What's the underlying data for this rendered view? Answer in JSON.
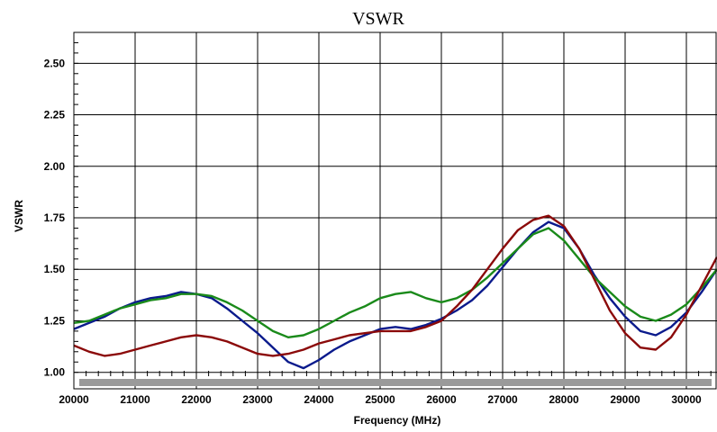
{
  "chart_data": {
    "type": "line",
    "title": "VSWR",
    "xlabel": "Frequency (MHz)",
    "ylabel": "VSWR",
    "xlim": [
      20000,
      30500
    ],
    "ylim": [
      0.92,
      2.65
    ],
    "x_ticks": [
      20000,
      21000,
      22000,
      23000,
      24000,
      25000,
      26000,
      27000,
      28000,
      29000,
      30000
    ],
    "y_ticks": [
      1.0,
      1.25,
      1.5,
      1.75,
      2.0,
      2.25,
      2.5
    ],
    "y_tick_labels": [
      "1.00",
      "1.25",
      "1.50",
      "1.75",
      "2.00",
      "2.25",
      "2.50"
    ],
    "grid": true,
    "legend": "none",
    "series": [
      {
        "color": "#0a1a8c",
        "points": [
          [
            20000,
            1.21
          ],
          [
            20250,
            1.24
          ],
          [
            20500,
            1.27
          ],
          [
            20750,
            1.31
          ],
          [
            21000,
            1.34
          ],
          [
            21250,
            1.36
          ],
          [
            21500,
            1.37
          ],
          [
            21750,
            1.39
          ],
          [
            22000,
            1.38
          ],
          [
            22250,
            1.36
          ],
          [
            22500,
            1.31
          ],
          [
            22750,
            1.25
          ],
          [
            23000,
            1.19
          ],
          [
            23250,
            1.12
          ],
          [
            23500,
            1.05
          ],
          [
            23750,
            1.02
          ],
          [
            24000,
            1.06
          ],
          [
            24250,
            1.11
          ],
          [
            24500,
            1.15
          ],
          [
            24750,
            1.18
          ],
          [
            25000,
            1.21
          ],
          [
            25250,
            1.22
          ],
          [
            25500,
            1.21
          ],
          [
            25750,
            1.23
          ],
          [
            26000,
            1.26
          ],
          [
            26250,
            1.3
          ],
          [
            26500,
            1.35
          ],
          [
            26750,
            1.42
          ],
          [
            27000,
            1.51
          ],
          [
            27250,
            1.6
          ],
          [
            27500,
            1.68
          ],
          [
            27750,
            1.73
          ],
          [
            28000,
            1.7
          ],
          [
            28250,
            1.6
          ],
          [
            28500,
            1.47
          ],
          [
            28750,
            1.36
          ],
          [
            29000,
            1.27
          ],
          [
            29250,
            1.2
          ],
          [
            29500,
            1.18
          ],
          [
            29750,
            1.22
          ],
          [
            30000,
            1.29
          ],
          [
            30250,
            1.39
          ],
          [
            30500,
            1.5
          ]
        ]
      },
      {
        "color": "#1a8a1a",
        "points": [
          [
            20000,
            1.24
          ],
          [
            20250,
            1.25
          ],
          [
            20500,
            1.28
          ],
          [
            20750,
            1.31
          ],
          [
            21000,
            1.33
          ],
          [
            21250,
            1.35
          ],
          [
            21500,
            1.36
          ],
          [
            21750,
            1.38
          ],
          [
            22000,
            1.38
          ],
          [
            22250,
            1.37
          ],
          [
            22500,
            1.34
          ],
          [
            22750,
            1.3
          ],
          [
            23000,
            1.25
          ],
          [
            23250,
            1.2
          ],
          [
            23500,
            1.17
          ],
          [
            23750,
            1.18
          ],
          [
            24000,
            1.21
          ],
          [
            24250,
            1.25
          ],
          [
            24500,
            1.29
          ],
          [
            24750,
            1.32
          ],
          [
            25000,
            1.36
          ],
          [
            25250,
            1.38
          ],
          [
            25500,
            1.39
          ],
          [
            25750,
            1.36
          ],
          [
            26000,
            1.34
          ],
          [
            26250,
            1.36
          ],
          [
            26500,
            1.4
          ],
          [
            26750,
            1.46
          ],
          [
            27000,
            1.53
          ],
          [
            27250,
            1.6
          ],
          [
            27500,
            1.67
          ],
          [
            27750,
            1.7
          ],
          [
            28000,
            1.64
          ],
          [
            28250,
            1.55
          ],
          [
            28500,
            1.46
          ],
          [
            28750,
            1.39
          ],
          [
            29000,
            1.32
          ],
          [
            29250,
            1.27
          ],
          [
            29500,
            1.25
          ],
          [
            29750,
            1.28
          ],
          [
            30000,
            1.33
          ],
          [
            30250,
            1.41
          ],
          [
            30500,
            1.5
          ]
        ]
      },
      {
        "color": "#8b0a0a",
        "points": [
          [
            20000,
            1.13
          ],
          [
            20250,
            1.1
          ],
          [
            20500,
            1.08
          ],
          [
            20750,
            1.09
          ],
          [
            21000,
            1.11
          ],
          [
            21250,
            1.13
          ],
          [
            21500,
            1.15
          ],
          [
            21750,
            1.17
          ],
          [
            22000,
            1.18
          ],
          [
            22250,
            1.17
          ],
          [
            22500,
            1.15
          ],
          [
            22750,
            1.12
          ],
          [
            23000,
            1.09
          ],
          [
            23250,
            1.08
          ],
          [
            23500,
            1.09
          ],
          [
            23750,
            1.11
          ],
          [
            24000,
            1.14
          ],
          [
            24250,
            1.16
          ],
          [
            24500,
            1.18
          ],
          [
            24750,
            1.19
          ],
          [
            25000,
            1.2
          ],
          [
            25250,
            1.2
          ],
          [
            25500,
            1.2
          ],
          [
            25750,
            1.22
          ],
          [
            26000,
            1.25
          ],
          [
            26250,
            1.32
          ],
          [
            26500,
            1.4
          ],
          [
            26750,
            1.5
          ],
          [
            27000,
            1.6
          ],
          [
            27250,
            1.69
          ],
          [
            27500,
            1.74
          ],
          [
            27750,
            1.76
          ],
          [
            28000,
            1.71
          ],
          [
            28250,
            1.6
          ],
          [
            28500,
            1.45
          ],
          [
            28750,
            1.3
          ],
          [
            29000,
            1.19
          ],
          [
            29250,
            1.12
          ],
          [
            29500,
            1.11
          ],
          [
            29750,
            1.17
          ],
          [
            30000,
            1.28
          ],
          [
            30250,
            1.42
          ],
          [
            30500,
            1.56
          ]
        ]
      }
    ]
  }
}
